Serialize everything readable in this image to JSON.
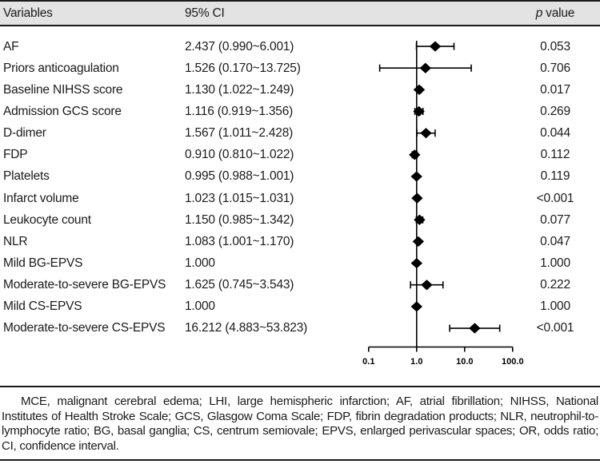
{
  "table": {
    "header": {
      "variables": "Variables",
      "ci": "95% CI",
      "p_italic": "p",
      "p_rest": "value"
    }
  },
  "chart_data": {
    "type": "scatter",
    "subtype": "forest-plot",
    "title": "",
    "xlabel": "",
    "x_scale": "log10",
    "x_range": [
      0.1,
      100.0
    ],
    "x_ticks": [
      0.1,
      1.0,
      10.0,
      100.0
    ],
    "x_tick_labels": [
      "0.1",
      "1.0",
      "10.0",
      "100.0"
    ],
    "reference_line": 1.0,
    "marker": "diamond",
    "series": [
      {
        "label": "AF",
        "ci_text": "2.437 (0.990~6.001)",
        "or": 2.437,
        "ci_low": 0.99,
        "ci_high": 6.001,
        "p": "0.053"
      },
      {
        "label": "Priors anticoagulation",
        "ci_text": "1.526 (0.170~13.725)",
        "or": 1.526,
        "ci_low": 0.17,
        "ci_high": 13.725,
        "p": "0.706"
      },
      {
        "label": "Baseline NIHSS score",
        "ci_text": "1.130 (1.022~1.249)",
        "or": 1.13,
        "ci_low": 1.022,
        "ci_high": 1.249,
        "p": "0.017"
      },
      {
        "label": "Admission GCS score",
        "ci_text": "1.116 (0.919~1.356)",
        "or": 1.116,
        "ci_low": 0.919,
        "ci_high": 1.356,
        "p": "0.269"
      },
      {
        "label": "D-dimer",
        "ci_text": "1.567 (1.011~2.428)",
        "or": 1.567,
        "ci_low": 1.011,
        "ci_high": 2.428,
        "p": "0.044"
      },
      {
        "label": "FDP",
        "ci_text": "0.910 (0.810~1.022)",
        "or": 0.91,
        "ci_low": 0.81,
        "ci_high": 1.022,
        "p": "0.112"
      },
      {
        "label": "Platelets",
        "ci_text": "0.995 (0.988~1.001)",
        "or": 0.995,
        "ci_low": 0.988,
        "ci_high": 1.001,
        "p": "0.119"
      },
      {
        "label": "Infarct volume",
        "ci_text": "1.023 (1.015~1.031)",
        "or": 1.023,
        "ci_low": 1.015,
        "ci_high": 1.031,
        "p": "<0.001"
      },
      {
        "label": "Leukocyte count",
        "ci_text": "1.150 (0.985~1.342)",
        "or": 1.15,
        "ci_low": 0.985,
        "ci_high": 1.342,
        "p": "0.077"
      },
      {
        "label": "NLR",
        "ci_text": "1.083 (1.001~1.170)",
        "or": 1.083,
        "ci_low": 1.001,
        "ci_high": 1.17,
        "p": "0.047"
      },
      {
        "label": "Mild BG-EPVS",
        "ci_text": "1.000",
        "or": 1.0,
        "ci_low": null,
        "ci_high": null,
        "p": "1.000"
      },
      {
        "label": "Moderate-to-severe BG-EPVS",
        "ci_text": "1.625 (0.745~3.543)",
        "or": 1.625,
        "ci_low": 0.745,
        "ci_high": 3.543,
        "p": "0.222"
      },
      {
        "label": "Mild CS-EPVS",
        "ci_text": "1.000",
        "or": 1.0,
        "ci_low": null,
        "ci_high": null,
        "p": "1.000"
      },
      {
        "label": "Moderate-to-severe CS-EPVS",
        "ci_text": "16.212 (4.883~53.823)",
        "or": 16.212,
        "ci_low": 4.883,
        "ci_high": 53.823,
        "p": "<0.001"
      }
    ]
  },
  "footnote": "MCE, malignant cerebral edema; LHI, large hemispheric infarction; AF, atrial fibrillation; NIHSS, National Institutes of Health Stroke Scale; GCS, Glasgow Coma Scale; FDP, fibrin degradation products; NLR, neutrophil-to-lymphocyte ratio; BG, basal ganglia; CS, centrum semiovale; EPVS, enlarged perivascular spaces; OR, odds ratio; CI, confidence interval.",
  "colors": {
    "header_bg": "#e3e3e3",
    "rule": "#1a1a1a",
    "text": "#1a1a1a",
    "marker": "#000000"
  }
}
